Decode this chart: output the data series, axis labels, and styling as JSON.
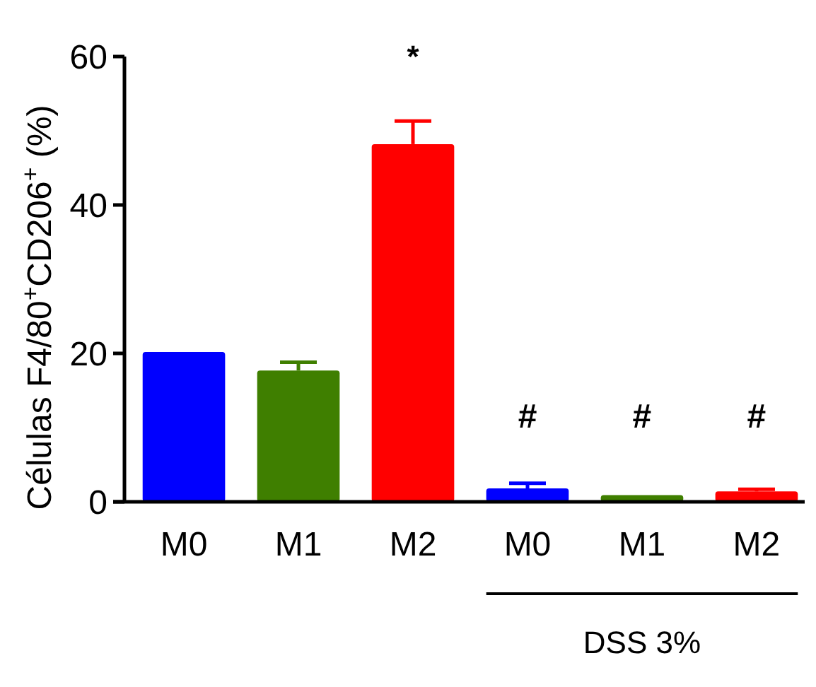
{
  "chart_data": {
    "type": "bar",
    "ylabel": "Células F4/80$^{+}$CD206$^{+}$ (%)",
    "categories": [
      "M0",
      "M1",
      "M2",
      "M0",
      "M1",
      "M2"
    ],
    "values": [
      20.2,
      17.7,
      48.2,
      1.8,
      0.9,
      1.4
    ],
    "colors": [
      "#0000ff",
      "#3f7f00",
      "#ff0000",
      "#0000ff",
      "#3f7f00",
      "#ff0000"
    ],
    "errors": [
      null,
      1.1,
      3.1,
      0.7,
      null,
      0.3
    ],
    "ylim": [
      0,
      60
    ],
    "yticks": [
      0,
      20,
      40,
      60
    ],
    "grid": false,
    "annotations": [
      "*",
      "#",
      "#",
      "#",
      "DSS 3%"
    ]
  }
}
